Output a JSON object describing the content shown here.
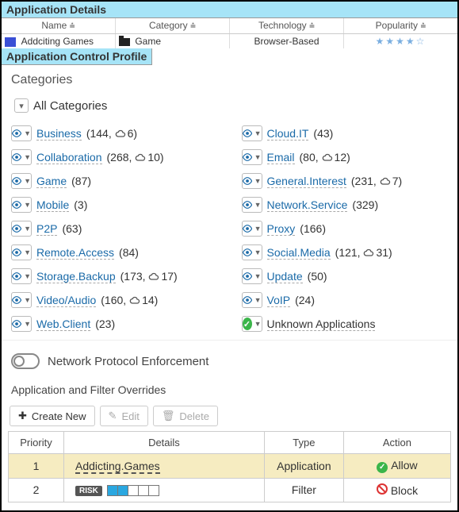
{
  "app_details": {
    "title": "Application Details",
    "headers": [
      "Name ⩮",
      "Category ⩮",
      "Technology ⩮",
      "Popularity ⩮"
    ],
    "row": {
      "name": "Addciting Games",
      "category": "Game",
      "technology": "Browser-Based",
      "popularity_stars": 4
    }
  },
  "profile": {
    "title": "Application Control Profile",
    "categories_label": "Categories",
    "all_categories_label": "All Categories"
  },
  "categories_left": [
    {
      "name": "Business",
      "count": 144,
      "cloud": 6
    },
    {
      "name": "Collaboration",
      "count": 268,
      "cloud": 10
    },
    {
      "name": "Game",
      "count": 87
    },
    {
      "name": "Mobile",
      "count": 3
    },
    {
      "name": "P2P",
      "count": 63
    },
    {
      "name": "Remote.Access",
      "count": 84
    },
    {
      "name": "Storage.Backup",
      "count": 173,
      "cloud": 17
    },
    {
      "name": "Video/Audio",
      "count": 160,
      "cloud": 14
    },
    {
      "name": "Web.Client",
      "count": 23
    }
  ],
  "categories_right": [
    {
      "name": "Cloud.IT",
      "count": 43
    },
    {
      "name": "Email",
      "count": 80,
      "cloud": 12
    },
    {
      "name": "General.Interest",
      "count": 231,
      "cloud": 7
    },
    {
      "name": "Network.Service",
      "count": 329
    },
    {
      "name": "Proxy",
      "count": 166
    },
    {
      "name": "Social.Media",
      "count": 121,
      "cloud": 31
    },
    {
      "name": "Update",
      "count": 50
    },
    {
      "name": "VoIP",
      "count": 24
    },
    {
      "name": "Unknown Applications",
      "special": "check"
    }
  ],
  "npe": {
    "label": "Network Protocol Enforcement",
    "enabled": false
  },
  "overrides": {
    "title": "Application and Filter Overrides",
    "toolbar": {
      "create": "Create New",
      "edit": "Edit",
      "delete": "Delete"
    },
    "columns": [
      "Priority",
      "Details",
      "Type",
      "Action"
    ],
    "rows": [
      {
        "priority": 1,
        "details": "Addicting.Games",
        "type": "Application",
        "action": "Allow",
        "highlight": true
      },
      {
        "priority": 2,
        "details_type": "risk",
        "risk_level": 2,
        "risk_slots": 5,
        "type": "Filter",
        "action": "Block"
      }
    ]
  },
  "colors": {
    "header_bg": "#a6e4f7",
    "eye_icon": "#1a6aa8",
    "highlight_row": "#f6ecc1",
    "allow_green": "#3bb54a",
    "block_red": "#d33"
  }
}
